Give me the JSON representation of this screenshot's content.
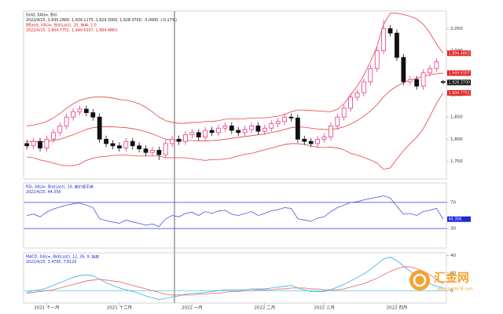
{
  "chart_data": [
    {
      "type": "candlestick",
      "title": "XAU=",
      "legend_lines": [
        "Gold, XAU=, Bid",
        "2022/4/25, 1,930.2800, 1,934.1175, 1,924.3000, 1,928.3700, -3.0600, (-0.17%)",
        "BBand, XAU=, Bid(Last), 20, 简单, 2.0",
        "2022/4/25, 1,904.7751, 1,949.6307, 1,994.4863"
      ],
      "legend_colors": [
        "#222222",
        "#222222",
        "#e02020",
        "#e02020"
      ],
      "categories": [
        null,
        null,
        null,
        "2021 十一月",
        null,
        null,
        null,
        null,
        null,
        null,
        null,
        null,
        null,
        null,
        "2021 十二月",
        null,
        null,
        null,
        null,
        null,
        null,
        null,
        null,
        null,
        null,
        "2022 一月",
        null,
        null,
        null,
        null,
        null,
        null,
        null,
        null,
        null,
        null,
        "2022 二月",
        null,
        null,
        null,
        null,
        null,
        null,
        null,
        null,
        "2022 三月",
        null,
        null,
        null,
        null,
        null,
        null,
        null,
        null,
        null,
        null,
        "2022 四月",
        null,
        null,
        null,
        null,
        null,
        null,
        null
      ],
      "open": [
        1790,
        1785,
        1795,
        1780,
        1800,
        1815,
        1830,
        1850,
        1862,
        1868,
        1860,
        1850,
        1800,
        1790,
        1785,
        1780,
        1795,
        1785,
        1778,
        1770,
        1775,
        1765,
        1790,
        1800,
        1795,
        1810,
        1815,
        1805,
        1820,
        1815,
        1825,
        1830,
        1820,
        1815,
        1822,
        1830,
        1818,
        1825,
        1835,
        1840,
        1850,
        1848,
        1800,
        1795,
        1790,
        1800,
        1805,
        1830,
        1850,
        1870,
        1895,
        1905,
        1930,
        1960,
        2000,
        2050,
        2040,
        1985,
        1930,
        1935,
        1920,
        1950,
        1960,
        1930.28
      ],
      "high": [
        1798,
        1803,
        1803,
        1808,
        1823,
        1838,
        1858,
        1870,
        1876,
        1876,
        1868,
        1858,
        1808,
        1798,
        1793,
        1803,
        1803,
        1793,
        1786,
        1783,
        1783,
        1798,
        1808,
        1808,
        1818,
        1823,
        1823,
        1828,
        1828,
        1833,
        1838,
        1838,
        1828,
        1830,
        1838,
        1838,
        1833,
        1843,
        1848,
        1858,
        1858,
        1856,
        1808,
        1803,
        1808,
        1813,
        1838,
        1858,
        1878,
        1903,
        1913,
        1938,
        1968,
        2008,
        2070,
        2058,
        2048,
        1993,
        1943,
        1943,
        1958,
        1968,
        1983,
        1934.1175
      ],
      "low": [
        1777,
        1777,
        1772,
        1772,
        1792,
        1807,
        1822,
        1842,
        1854,
        1852,
        1842,
        1792,
        1782,
        1777,
        1772,
        1772,
        1777,
        1770,
        1762,
        1762,
        1753,
        1757,
        1782,
        1787,
        1787,
        1802,
        1797,
        1797,
        1807,
        1807,
        1817,
        1812,
        1807,
        1807,
        1814,
        1810,
        1810,
        1817,
        1827,
        1832,
        1840,
        1792,
        1787,
        1782,
        1782,
        1792,
        1797,
        1822,
        1842,
        1862,
        1887,
        1897,
        1922,
        1952,
        1992,
        2032,
        1977,
        1922,
        1922,
        1912,
        1912,
        1942,
        1952,
        1924.3
      ],
      "close": [
        1785,
        1795,
        1780,
        1800,
        1815,
        1830,
        1850,
        1862,
        1868,
        1860,
        1850,
        1800,
        1790,
        1785,
        1780,
        1795,
        1785,
        1778,
        1770,
        1775,
        1765,
        1790,
        1800,
        1795,
        1810,
        1815,
        1805,
        1820,
        1815,
        1825,
        1830,
        1820,
        1815,
        1822,
        1830,
        1818,
        1825,
        1835,
        1840,
        1850,
        1848,
        1800,
        1795,
        1790,
        1800,
        1805,
        1830,
        1850,
        1870,
        1895,
        1905,
        1930,
        1960,
        2000,
        2050,
        2040,
        1985,
        1930,
        1935,
        1920,
        1950,
        1960,
        1975,
        1928.37
      ],
      "up_color": "#e8368f",
      "down_color": "#111111",
      "series": [
        {
          "name": "BBand upper",
          "color": "#e84040",
          "values": [
            1830,
            1832,
            1835,
            1840,
            1848,
            1858,
            1870,
            1880,
            1888,
            1892,
            1895,
            1896,
            1895,
            1893,
            1890,
            1888,
            1885,
            1880,
            1872,
            1862,
            1850,
            1842,
            1838,
            1836,
            1836,
            1838,
            1838,
            1840,
            1840,
            1842,
            1845,
            1846,
            1846,
            1846,
            1848,
            1848,
            1848,
            1850,
            1852,
            1856,
            1862,
            1866,
            1866,
            1865,
            1864,
            1863,
            1862,
            1868,
            1880,
            1900,
            1920,
            1945,
            1975,
            2010,
            2060,
            2085,
            2085,
            2082,
            2078,
            2072,
            2060,
            2040,
            2015,
            1994.4863
          ]
        },
        {
          "name": "BBand middle",
          "color": "#e84040",
          "values": [
            1795,
            1795,
            1794,
            1795,
            1797,
            1800,
            1805,
            1810,
            1816,
            1822,
            1826,
            1828,
            1828,
            1828,
            1827,
            1826,
            1824,
            1821,
            1817,
            1812,
            1806,
            1800,
            1798,
            1797,
            1797,
            1797,
            1796,
            1796,
            1797,
            1798,
            1800,
            1802,
            1804,
            1806,
            1808,
            1810,
            1812,
            1815,
            1818,
            1822,
            1826,
            1828,
            1827,
            1825,
            1823,
            1822,
            1822,
            1824,
            1828,
            1834,
            1842,
            1852,
            1864,
            1878,
            1896,
            1910,
            1920,
            1928,
            1934,
            1938,
            1942,
            1946,
            1948,
            1949.6307
          ]
        },
        {
          "name": "BBand lower",
          "color": "#e84040",
          "values": [
            1760,
            1758,
            1753,
            1750,
            1746,
            1742,
            1740,
            1740,
            1744,
            1752,
            1757,
            1760,
            1761,
            1763,
            1764,
            1764,
            1763,
            1762,
            1762,
            1762,
            1762,
            1758,
            1758,
            1758,
            1758,
            1756,
            1754,
            1752,
            1754,
            1754,
            1755,
            1758,
            1762,
            1766,
            1768,
            1772,
            1776,
            1780,
            1784,
            1788,
            1790,
            1790,
            1788,
            1785,
            1782,
            1781,
            1782,
            1780,
            1776,
            1768,
            1764,
            1759,
            1753,
            1746,
            1732,
            1735,
            1755,
            1774,
            1790,
            1804,
            1824,
            1852,
            1881,
            1904.7751
          ]
        }
      ],
      "price_tags": [
        {
          "value": 1994.4863,
          "label": "1,994.4863",
          "color": "#e02020"
        },
        {
          "value": 1949.6307,
          "label": "1,949.6307",
          "color": "#e02020"
        },
        {
          "value": 1928.37,
          "label": "1,928.3700",
          "color": "#111111"
        },
        {
          "value": 1904.7751,
          "label": "1,904.7751",
          "color": "#e02020"
        }
      ],
      "ylim": [
        1710,
        2090
      ],
      "yticks": [
        {
          "value": 1750,
          "label": "1,750"
        },
        {
          "value": 1800,
          "label": "1,800"
        },
        {
          "value": 1850,
          "label": "1,850"
        },
        {
          "value": 1900,
          "label": "1,900"
        },
        {
          "value": 1950,
          "label": "1,950"
        },
        {
          "value": 2000,
          "label": "2,000"
        },
        {
          "value": 2050,
          "label": "2,050"
        }
      ],
      "grid": false
    },
    {
      "type": "line",
      "legend_lines": [
        "RSI, XAU=, Bid(Last), 14, 威尔德平滑",
        "2022/4/25, 44.356"
      ],
      "legend_colors": [
        "#1a2bd6",
        "#1a2bd6"
      ],
      "series": [
        {
          "name": "RSI",
          "color": "#4a55d8",
          "values": [
            50,
            52,
            48,
            55,
            60,
            63,
            66,
            68,
            69,
            66,
            62,
            45,
            42,
            40,
            38,
            43,
            40,
            38,
            35,
            37,
            33,
            45,
            50,
            48,
            53,
            55,
            50,
            56,
            53,
            57,
            58,
            52,
            50,
            53,
            56,
            50,
            53,
            57,
            59,
            62,
            61,
            45,
            43,
            41,
            46,
            48,
            56,
            62,
            66,
            70,
            71,
            74,
            76,
            78,
            80,
            77,
            64,
            52,
            53,
            50,
            56,
            58,
            61,
            44.356
          ]
        }
      ],
      "price_tags": [
        {
          "value": 44.356,
          "label": "44.356",
          "color": "#1a2bd6"
        }
      ],
      "ylim": [
        0,
        100
      ],
      "yticks": [
        30,
        70
      ],
      "tick_line_color": "#3a3adb",
      "grid": true
    },
    {
      "type": "line",
      "legend_lines": [
        "MACD, XAU=, Bid(Last), 12, 26, 9, 指数",
        "2022/4/25, 3.4795, 7.8120"
      ],
      "legend_colors": [
        "#1a2bd6",
        "#1a2bd6"
      ],
      "series": [
        {
          "name": "MACD",
          "color": "#3aa8e8",
          "values": [
            -2,
            0,
            1,
            3,
            6,
            9,
            12,
            15,
            17,
            18,
            17,
            13,
            9,
            6,
            3,
            1,
            -1,
            -3,
            -6,
            -8,
            -10,
            -9,
            -7,
            -6,
            -4,
            -3,
            -3,
            -2,
            -1,
            0,
            1,
            1,
            1,
            1,
            2,
            2,
            2,
            3,
            4,
            5,
            6,
            3,
            1,
            -1,
            -1,
            -1,
            1,
            4,
            7,
            11,
            15,
            19,
            24,
            30,
            36,
            38,
            34,
            28,
            22,
            17,
            12,
            8,
            5,
            3.4795
          ]
        },
        {
          "name": "Signal",
          "color": "#e86060",
          "values": [
            -3,
            -2,
            -1,
            0,
            1,
            3,
            5,
            7,
            9,
            11,
            12,
            13,
            12,
            11,
            10,
            8,
            6,
            4,
            2,
            0,
            -2,
            -4,
            -5,
            -5,
            -5,
            -5,
            -4,
            -4,
            -3,
            -3,
            -2,
            -1,
            -1,
            0,
            0,
            1,
            1,
            1,
            2,
            2,
            3,
            3,
            3,
            2,
            2,
            1,
            1,
            1,
            2,
            4,
            6,
            8,
            11,
            14,
            18,
            22,
            25,
            27,
            27,
            25,
            22,
            18,
            13,
            7.812
          ]
        }
      ],
      "ylim": [
        -14,
        43
      ],
      "yticks": [
        0,
        20,
        40
      ],
      "tick_line_color": "#44c8e0",
      "grid": false
    }
  ],
  "watermark": {
    "name": "汇金网",
    "url": "www.gold678.com"
  }
}
